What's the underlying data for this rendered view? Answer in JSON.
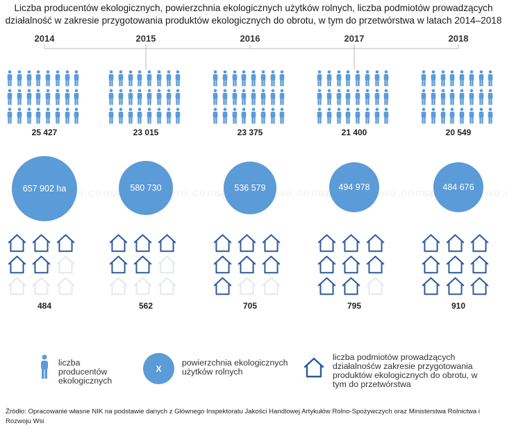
{
  "title": "Liczba producentów ekologicznych, powierzchnia ekologicznych użytków rolnych, liczba podmiotów prowadzących działalność w zakresie przygotowania produktów ekologicznych do obrotu, w tym do przetwórstwa w latach 2014–2018",
  "years": [
    {
      "year": "2014",
      "producers": "25 427",
      "area": "657 902 ha",
      "entities": "484",
      "houses_filled": 5
    },
    {
      "year": "2015",
      "producers": "23 015",
      "area": "580 730",
      "entities": "562",
      "houses_filled": 5
    },
    {
      "year": "2016",
      "producers": "23 375",
      "area": "536 579",
      "entities": "705",
      "houses_filled": 7
    },
    {
      "year": "2017",
      "producers": "21 400",
      "area": "494 978",
      "entities": "795",
      "houses_filled": 8
    },
    {
      "year": "2018",
      "producers": "20 549",
      "area": "484 676",
      "entities": "910",
      "houses_filled": 9
    }
  ],
  "legend": {
    "producers": "liczba producentów ekologicznych",
    "area_symbol": "X",
    "area": "powierzchnia ekologicznych użytków rolnych",
    "entities": "liczba podmiotów prowadzących działalnośćw zakresie przygotowania produktów ekologicznych do obrotu, w tym do przetwórstwa"
  },
  "source": "Źródło: Opracowanie własne NIK na podstawie danych z Głównego Inspektoratu Jakości Handlowej Artykułów Rolno-Spożywczych oraz Ministerstwa Rolnictwa i Rozwoju Wsi",
  "watermark": "sadownictwo.com.pl",
  "colors": {
    "accent": "#5b9bd8",
    "house_stroke": "#2b5a9c",
    "house_faded": "#e4e8ee",
    "line": "#b9b9b9"
  }
}
